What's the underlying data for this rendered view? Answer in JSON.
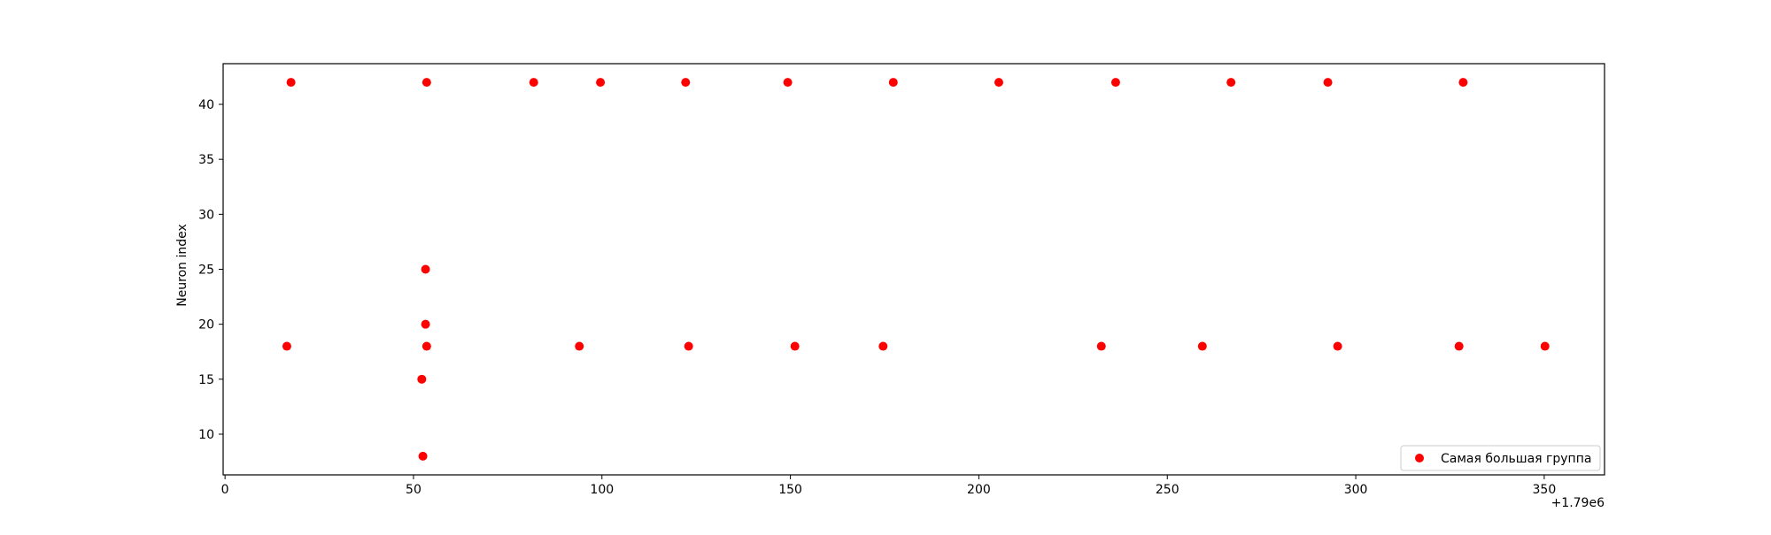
{
  "chart_data": {
    "type": "scatter",
    "xlabel": "",
    "ylabel": "Neuron index",
    "x_offset_label": "+1.79e6",
    "xlim": [
      -0.5,
      366
    ],
    "ylim": [
      6.3,
      43.7
    ],
    "xticks": [
      0,
      50,
      100,
      150,
      200,
      250,
      300,
      350
    ],
    "yticks": [
      10,
      15,
      20,
      25,
      30,
      35,
      40
    ],
    "grid": false,
    "legend_position": "lower right",
    "series": [
      {
        "name": "Самая большая группа",
        "color": "#ff0000",
        "points": [
          {
            "x": 17.5,
            "y": 42
          },
          {
            "x": 53.5,
            "y": 42
          },
          {
            "x": 81.9,
            "y": 42
          },
          {
            "x": 99.6,
            "y": 42
          },
          {
            "x": 122.2,
            "y": 42
          },
          {
            "x": 149.3,
            "y": 42
          },
          {
            "x": 177.3,
            "y": 42
          },
          {
            "x": 205.3,
            "y": 42
          },
          {
            "x": 236.3,
            "y": 42
          },
          {
            "x": 266.9,
            "y": 42
          },
          {
            "x": 292.6,
            "y": 42
          },
          {
            "x": 328.5,
            "y": 42
          },
          {
            "x": 53.2,
            "y": 25
          },
          {
            "x": 53.2,
            "y": 20
          },
          {
            "x": 16.4,
            "y": 18
          },
          {
            "x": 53.5,
            "y": 18
          },
          {
            "x": 94.0,
            "y": 18
          },
          {
            "x": 123.0,
            "y": 18
          },
          {
            "x": 151.2,
            "y": 18
          },
          {
            "x": 174.6,
            "y": 18
          },
          {
            "x": 232.5,
            "y": 18
          },
          {
            "x": 259.3,
            "y": 18
          },
          {
            "x": 295.2,
            "y": 18
          },
          {
            "x": 327.4,
            "y": 18
          },
          {
            "x": 350.2,
            "y": 18
          },
          {
            "x": 52.2,
            "y": 15
          },
          {
            "x": 52.5,
            "y": 8
          }
        ]
      }
    ]
  }
}
